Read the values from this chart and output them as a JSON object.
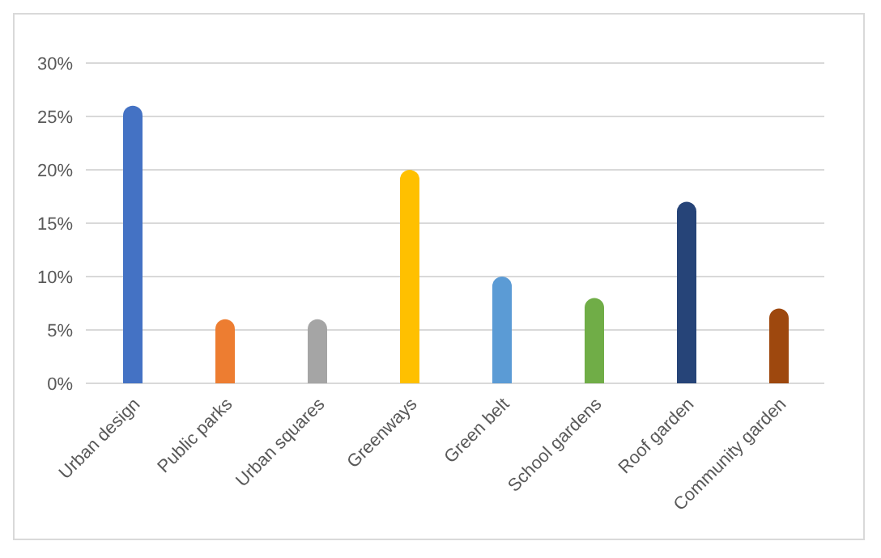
{
  "chart_data": {
    "type": "bar",
    "categories": [
      "Urban design",
      "Public parks",
      "Urban squares",
      "Greenways",
      "Green belt",
      "School gardens",
      "Roof garden",
      "Community garden"
    ],
    "values": [
      26,
      6,
      6,
      20,
      10,
      8,
      17,
      7
    ],
    "colors": [
      "#4472c4",
      "#ed7d31",
      "#a5a5a5",
      "#ffc000",
      "#5b9bd5",
      "#70ad47",
      "#264478",
      "#9e480e"
    ],
    "ylim": [
      0,
      30
    ],
    "yticks": [
      {
        "value": 0,
        "label": "0%"
      },
      {
        "value": 5,
        "label": "5%"
      },
      {
        "value": 10,
        "label": "10%"
      },
      {
        "value": 15,
        "label": "15%"
      },
      {
        "value": 20,
        "label": "20%"
      },
      {
        "value": 25,
        "label": "25%"
      },
      {
        "value": 30,
        "label": "30%"
      }
    ],
    "grid": "y"
  }
}
